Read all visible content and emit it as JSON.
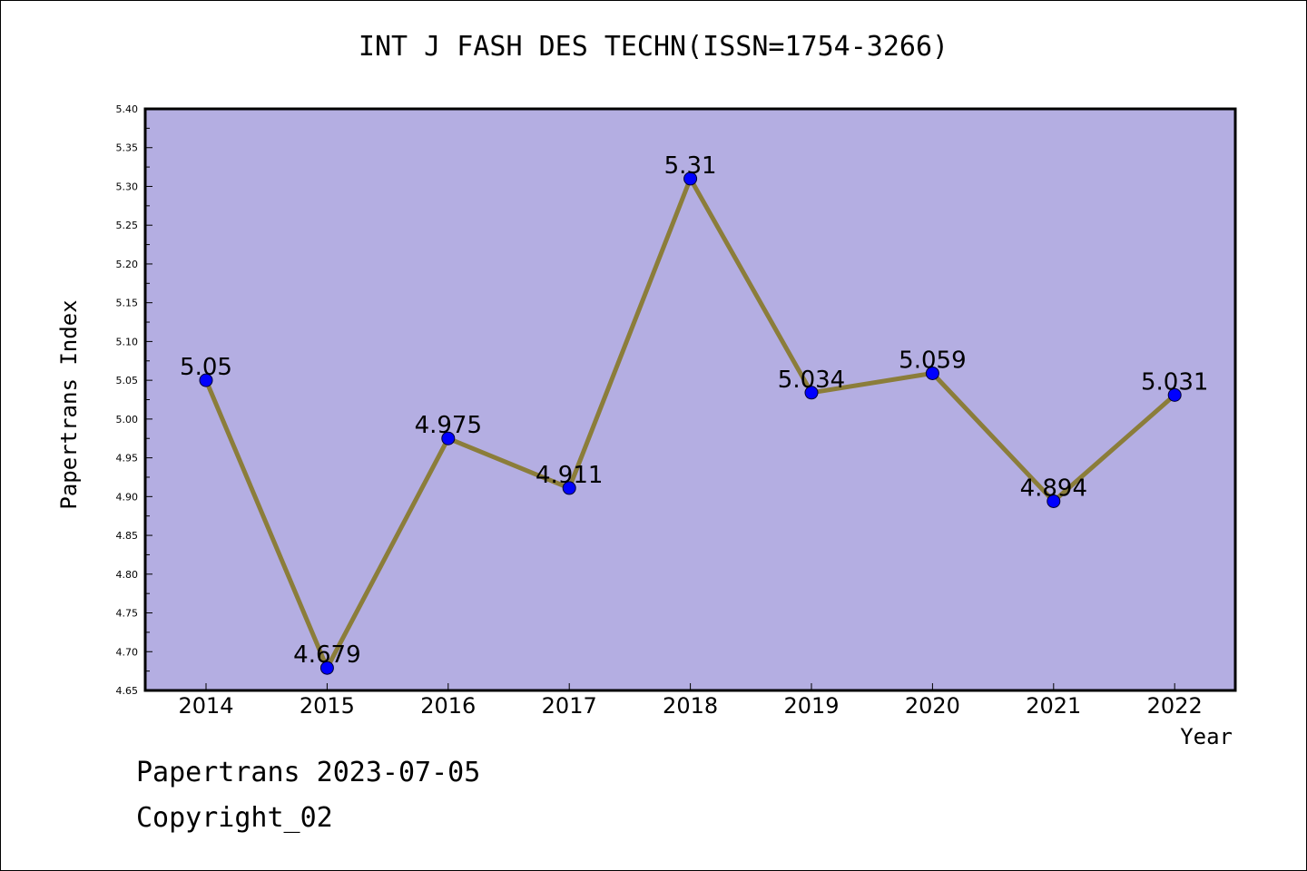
{
  "page": {
    "background": "#ffffff",
    "plot_background": "#b4aee2",
    "line_color": "#8b7d3a",
    "marker_color": "#0000ff",
    "footer": {
      "line1": "Papertrans 2023-07-05",
      "line2": "Copyright_02"
    }
  },
  "chart_data": {
    "type": "line",
    "title": "INT J FASH DES TECHN(ISSN=1754-3266)",
    "xlabel": "Year",
    "ylabel": "Papertrans Index",
    "categories": [
      "2014",
      "2015",
      "2016",
      "2017",
      "2018",
      "2019",
      "2020",
      "2021",
      "2022"
    ],
    "values": [
      5.05,
      4.679,
      4.975,
      4.911,
      5.31,
      5.034,
      5.059,
      4.894,
      5.031
    ],
    "data_labels": [
      "5.05",
      "4.679",
      "4.975",
      "4.911",
      "5.31",
      "5.034",
      "5.059",
      "4.894",
      "5.031"
    ],
    "ylim": [
      4.65,
      5.4
    ],
    "yticks": [
      "4.65",
      "4.70",
      "4.75",
      "4.80",
      "4.85",
      "4.90",
      "4.95",
      "5.00",
      "5.05",
      "5.10",
      "5.15",
      "5.20",
      "5.25",
      "5.30",
      "5.35",
      "5.40"
    ],
    "grid": false,
    "legend": "none"
  }
}
